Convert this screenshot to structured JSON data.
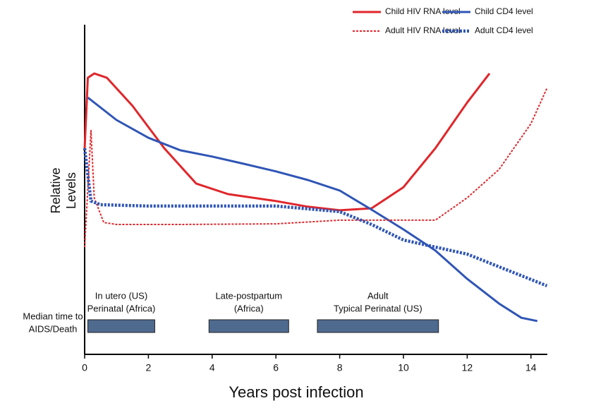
{
  "chart_data": {
    "type": "line",
    "ylabel": [
      "Relative",
      "Levels"
    ],
    "xlabel": "Years post infection",
    "xlim": [
      0,
      14.5
    ],
    "xticks": [
      0,
      2,
      4,
      6,
      8,
      10,
      12,
      14
    ],
    "ylim": [
      0,
      100
    ],
    "grid": false,
    "legend": "upper right",
    "series": [
      {
        "name": "Child HIV RNA level",
        "color": "#e0262b",
        "style": "solid",
        "x": [
          0,
          0.1,
          0.3,
          0.7,
          1.5,
          2.5,
          3.5,
          4.5,
          6,
          7,
          8,
          9,
          10,
          11,
          12,
          12.7
        ],
        "values": [
          62.5,
          83.9,
          85.2,
          83.9,
          75.4,
          62.5,
          51.8,
          48.6,
          46.5,
          44.8,
          43.7,
          44.3,
          50.7,
          62.5,
          76.4,
          85.2
        ]
      },
      {
        "name": "Child CD4 level",
        "color": "#2f55b5",
        "style": "solid",
        "x": [
          0.1,
          1,
          2,
          3,
          4,
          5,
          6,
          7,
          8,
          9,
          10,
          11,
          12,
          13,
          13.7,
          14.2
        ],
        "values": [
          77.9,
          71.1,
          65.7,
          61.9,
          60,
          57.8,
          55.5,
          52.9,
          49.7,
          43.9,
          37.9,
          31.5,
          22.9,
          15.4,
          11.1,
          10.1
        ]
      },
      {
        "name": "Adult HIV RNA level",
        "color": "#e0262b",
        "style": "dotted",
        "x": [
          0,
          0.2,
          0.3,
          0.6,
          1,
          3,
          6,
          8,
          10,
          11,
          12,
          13,
          14,
          14.5
        ],
        "values": [
          32.5,
          67.9,
          47.5,
          40,
          39.4,
          39.4,
          39.6,
          40.7,
          40.7,
          40.7,
          47.5,
          56.1,
          70,
          80.7
        ]
      },
      {
        "name": "Adult CD4 level",
        "color": "#2f55b5",
        "style": "dotted",
        "x": [
          0,
          0.2,
          0.5,
          2,
          6,
          8,
          9,
          10,
          12,
          14.5
        ],
        "values": [
          62.5,
          46.5,
          45.4,
          45,
          45,
          43.3,
          39.4,
          34.7,
          30.4,
          20.8
        ]
      }
    ],
    "median_label": [
      "Median time to",
      "AIDS/Death"
    ],
    "ranges": [
      {
        "label": [
          "In utero (US)",
          "Perinatal (Africa)"
        ],
        "x": [
          0.1,
          2.2
        ]
      },
      {
        "label": [
          "Late-postpartum",
          "(Africa)"
        ],
        "x": [
          3.9,
          6.4
        ]
      },
      {
        "label": [
          "Adult",
          "Typical Perinatal (US)"
        ],
        "x": [
          7.3,
          11.1
        ]
      }
    ]
  }
}
